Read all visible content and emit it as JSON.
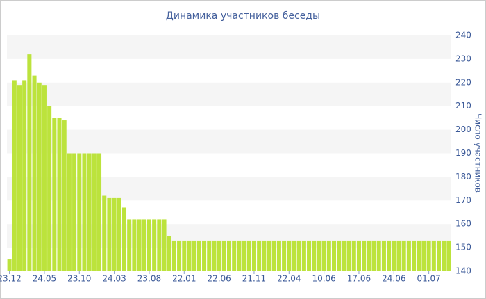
{
  "chart_data": {
    "type": "bar",
    "title": "Динамика участников беседы",
    "y_axis_label": "Число участников",
    "categories": [
      "23.12",
      null,
      null,
      null,
      null,
      null,
      null,
      "24.05",
      null,
      null,
      null,
      null,
      null,
      null,
      "23.10",
      null,
      null,
      null,
      null,
      null,
      null,
      "24.03",
      null,
      null,
      null,
      null,
      null,
      null,
      "23.08",
      null,
      null,
      null,
      null,
      null,
      null,
      "22.01",
      null,
      null,
      null,
      null,
      null,
      null,
      "22.06",
      null,
      null,
      null,
      null,
      null,
      null,
      "21.11",
      null,
      null,
      null,
      null,
      null,
      null,
      "22.04",
      null,
      null,
      null,
      null,
      null,
      null,
      "10.06",
      null,
      null,
      null,
      null,
      null,
      null,
      "17.06",
      null,
      null,
      null,
      null,
      null,
      null,
      "24.06",
      null,
      null,
      null,
      null,
      null,
      null,
      "01.07",
      null,
      null,
      null,
      null
    ],
    "values": [
      145,
      221,
      219,
      221,
      232,
      223,
      220,
      219,
      210,
      205,
      205,
      204,
      190,
      190,
      190,
      190,
      190,
      190,
      190,
      172,
      171,
      171,
      171,
      167,
      162,
      162,
      162,
      162,
      162,
      162,
      162,
      162,
      155,
      153,
      153,
      153,
      153,
      153,
      153,
      153,
      153,
      153,
      153,
      153,
      153,
      153,
      153,
      153,
      153,
      153,
      153,
      153,
      153,
      153,
      153,
      153,
      153,
      153,
      153,
      153,
      153,
      153,
      153,
      153,
      153,
      153,
      153,
      153,
      153,
      153,
      153,
      153,
      153,
      153,
      153,
      153,
      153,
      153,
      153,
      153,
      153,
      153,
      153,
      153,
      153,
      153,
      153,
      153,
      153
    ],
    "color": "#bce33c",
    "ylim": [
      140,
      240
    ],
    "yticks": [
      140,
      150,
      160,
      170,
      180,
      190,
      200,
      210,
      220,
      230,
      240
    ],
    "y_axis_side": "right",
    "striped_background": true
  }
}
